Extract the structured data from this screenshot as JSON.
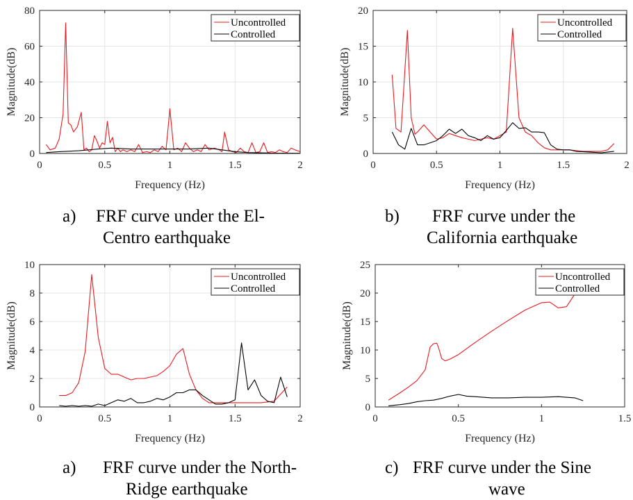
{
  "chart_data": [
    {
      "type": "line",
      "xlabel": "Frequency (Hz)",
      "ylabel": "Magnitude(dB)",
      "xlim": [
        0,
        2
      ],
      "ylim": [
        0,
        80
      ],
      "xticks": [
        "0",
        "0.5",
        "1",
        "1.5",
        "2"
      ],
      "yticks": [
        "0",
        "20",
        "40",
        "60",
        "80"
      ],
      "grid": true,
      "legend": "top-right",
      "series": [
        {
          "name": "Uncontrolled",
          "color": "#e8191e",
          "x": [
            0.05,
            0.08,
            0.12,
            0.15,
            0.18,
            0.2,
            0.22,
            0.24,
            0.26,
            0.29,
            0.32,
            0.34,
            0.36,
            0.38,
            0.4,
            0.42,
            0.44,
            0.46,
            0.48,
            0.5,
            0.52,
            0.54,
            0.56,
            0.58,
            0.6,
            0.62,
            0.64,
            0.67,
            0.7,
            0.73,
            0.76,
            0.79,
            0.82,
            0.85,
            0.88,
            0.91,
            0.94,
            0.97,
            1.0,
            1.03,
            1.06,
            1.09,
            1.12,
            1.15,
            1.18,
            1.21,
            1.24,
            1.27,
            1.3,
            1.34,
            1.38,
            1.4,
            1.42,
            1.45,
            1.48,
            1.51,
            1.54,
            1.57,
            1.6,
            1.63,
            1.66,
            1.69,
            1.72,
            1.75,
            1.78,
            1.81,
            1.84,
            1.87,
            1.9,
            1.93,
            1.96,
            2.0
          ],
          "y": [
            5,
            2,
            3,
            8,
            22,
            73,
            17,
            16,
            12,
            15,
            23,
            2,
            3,
            1,
            2,
            10,
            7,
            3,
            6,
            5,
            18,
            6,
            9,
            1,
            3,
            1,
            2,
            1,
            2,
            1,
            5,
            0.5,
            1,
            0.5,
            2,
            1,
            4,
            2,
            25,
            2,
            3,
            1,
            6,
            3,
            1,
            2,
            1,
            5,
            2,
            3,
            2,
            1,
            12,
            2,
            1,
            0.5,
            3,
            1,
            0.5,
            6,
            0.5,
            1,
            6,
            0.5,
            1,
            0.5,
            2,
            1,
            0.5,
            3,
            2,
            1
          ]
        },
        {
          "name": "Controlled",
          "color": "#000000",
          "x": [
            0.05,
            0.15,
            0.3,
            0.45,
            0.55,
            0.7,
            0.85,
            1.0,
            1.15,
            1.3,
            1.4,
            1.5,
            1.6,
            1.8,
            2.0
          ],
          "y": [
            0.5,
            1,
            1.5,
            2.5,
            3,
            2.5,
            2.5,
            2.5,
            2.5,
            3,
            2,
            1,
            0.5,
            0.2,
            0.1
          ]
        }
      ]
    },
    {
      "type": "line",
      "xlabel": "Frequency (Hz)",
      "ylabel": "Magnitude(dB)",
      "xlim": [
        0,
        2
      ],
      "ylim": [
        0,
        20
      ],
      "xticks": [
        "0",
        "0.5",
        "1",
        "1.5",
        "2"
      ],
      "yticks": [
        "0",
        "5",
        "10",
        "15",
        "20"
      ],
      "grid": true,
      "legend": "top-right",
      "series": [
        {
          "name": "Uncontrolled",
          "color": "#e8191e",
          "x": [
            0.15,
            0.18,
            0.22,
            0.27,
            0.3,
            0.33,
            0.35,
            0.4,
            0.45,
            0.5,
            0.55,
            0.6,
            0.65,
            0.7,
            0.75,
            0.8,
            0.85,
            0.9,
            0.95,
            1.0,
            1.05,
            1.1,
            1.15,
            1.2,
            1.25,
            1.3,
            1.35,
            1.4,
            1.45,
            1.5,
            1.55,
            1.6,
            1.65,
            1.7,
            1.75,
            1.8,
            1.85,
            1.9
          ],
          "y": [
            11,
            3.5,
            3,
            17.2,
            5,
            2.7,
            3,
            4,
            3,
            2,
            2.2,
            2.8,
            2.5,
            2.2,
            2,
            1.8,
            2,
            2.2,
            2,
            2.5,
            3,
            17.5,
            5,
            3,
            2.5,
            1.5,
            0.8,
            0.5,
            0.5,
            0.5,
            0.5,
            0.4,
            0.3,
            0.3,
            0.3,
            0.3,
            0.5,
            1.4
          ]
        },
        {
          "name": "Controlled",
          "color": "#000000",
          "x": [
            0.15,
            0.2,
            0.25,
            0.3,
            0.35,
            0.4,
            0.45,
            0.5,
            0.55,
            0.6,
            0.65,
            0.7,
            0.75,
            0.8,
            0.85,
            0.9,
            0.95,
            1.0,
            1.05,
            1.1,
            1.15,
            1.2,
            1.25,
            1.3,
            1.35,
            1.4,
            1.45,
            1.5,
            1.55,
            1.6,
            1.7,
            1.8,
            1.85,
            1.9
          ],
          "y": [
            3,
            1.2,
            0.6,
            3.5,
            1.2,
            1.2,
            1.5,
            1.8,
            2.5,
            3.4,
            2.8,
            3.4,
            2.5,
            2.2,
            1.8,
            2.5,
            2,
            2.2,
            3.2,
            4.3,
            3.5,
            3.6,
            3,
            3,
            2.9,
            1.2,
            0.6,
            0.5,
            0.5,
            0.3,
            0.2,
            0.1,
            0.2,
            0.3
          ]
        }
      ]
    },
    {
      "type": "line",
      "xlabel": "Frequency (Hz)",
      "ylabel": "Magnitude(dB)",
      "xlim": [
        0,
        2
      ],
      "ylim": [
        0,
        10
      ],
      "xticks": [
        "0",
        "0.5",
        "1",
        "1.5",
        "2"
      ],
      "yticks": [
        "0",
        "2",
        "4",
        "6",
        "8",
        "10"
      ],
      "grid": true,
      "legend": "top-right",
      "series": [
        {
          "name": "Uncontrolled",
          "color": "#e8191e",
          "x": [
            0.15,
            0.2,
            0.25,
            0.3,
            0.35,
            0.4,
            0.45,
            0.5,
            0.55,
            0.6,
            0.65,
            0.7,
            0.75,
            0.8,
            0.85,
            0.9,
            0.95,
            1.0,
            1.05,
            1.1,
            1.15,
            1.2,
            1.25,
            1.3,
            1.35,
            1.4,
            1.5,
            1.6,
            1.7,
            1.8,
            1.9
          ],
          "y": [
            0.8,
            0.8,
            1,
            1.7,
            3.9,
            9.3,
            4.9,
            2.7,
            2.3,
            2.3,
            2.1,
            1.9,
            2,
            2,
            2.1,
            2.2,
            2.5,
            2.9,
            3.7,
            4.1,
            2.3,
            1.2,
            0.6,
            0.3,
            0.3,
            0.3,
            0.3,
            0.3,
            0.3,
            0.4,
            1.4
          ]
        },
        {
          "name": "Controlled",
          "color": "#000000",
          "x": [
            0.15,
            0.2,
            0.25,
            0.3,
            0.35,
            0.4,
            0.45,
            0.5,
            0.55,
            0.6,
            0.65,
            0.7,
            0.75,
            0.8,
            0.85,
            0.9,
            0.95,
            1.0,
            1.05,
            1.1,
            1.15,
            1.2,
            1.25,
            1.3,
            1.35,
            1.4,
            1.45,
            1.5,
            1.55,
            1.6,
            1.65,
            1.7,
            1.75,
            1.8,
            1.85,
            1.9
          ],
          "y": [
            0.1,
            0.05,
            0.1,
            0.05,
            0.1,
            0.05,
            0.2,
            0.1,
            0.3,
            0.5,
            0.4,
            0.6,
            0.3,
            0.3,
            0.4,
            0.6,
            0.5,
            0.7,
            1,
            1,
            1.2,
            1.2,
            0.8,
            0.5,
            0.2,
            0.2,
            0.3,
            0.5,
            4.5,
            1.2,
            1.9,
            0.8,
            0.4,
            0.3,
            2.1,
            0.7
          ]
        }
      ]
    },
    {
      "type": "line",
      "xlabel": "Frequency (Hz)",
      "ylabel": "Magnitude(dB)",
      "xlim": [
        0,
        1.5
      ],
      "ylim": [
        0,
        25
      ],
      "xticks": [
        "0",
        "0.5",
        "1",
        "1.5"
      ],
      "yticks": [
        "0",
        "5",
        "10",
        "15",
        "20",
        "25"
      ],
      "grid": false,
      "legend": "top-right",
      "series": [
        {
          "name": "Uncontrolled",
          "color": "#e8191e",
          "x": [
            0.08,
            0.15,
            0.2,
            0.25,
            0.3,
            0.33,
            0.35,
            0.37,
            0.38,
            0.4,
            0.42,
            0.45,
            0.5,
            0.6,
            0.7,
            0.8,
            0.9,
            1.0,
            1.05,
            1.1,
            1.15,
            1.2
          ],
          "y": [
            1.2,
            2.5,
            3.5,
            4.6,
            6.5,
            10.5,
            11.1,
            11.2,
            10.5,
            8.5,
            8.1,
            8.4,
            9.2,
            11.3,
            13.3,
            15.2,
            17,
            18.3,
            18.4,
            17.4,
            17.6,
            19.8
          ]
        },
        {
          "name": "Controlled",
          "color": "#000000",
          "x": [
            0.08,
            0.15,
            0.2,
            0.25,
            0.3,
            0.35,
            0.4,
            0.45,
            0.5,
            0.55,
            0.6,
            0.7,
            0.8,
            0.9,
            1.0,
            1.1,
            1.15,
            1.2,
            1.25
          ],
          "y": [
            0.2,
            0.4,
            0.6,
            0.9,
            1.1,
            1.2,
            1.5,
            1.9,
            2.2,
            1.9,
            1.8,
            1.6,
            1.6,
            1.7,
            1.7,
            1.8,
            1.7,
            1.6,
            1.1
          ]
        }
      ]
    }
  ],
  "captions": [
    {
      "label": "a)",
      "line1": "FRF curve under the El-",
      "line2": "Centro earthquake"
    },
    {
      "label": "b)",
      "line1": "FRF curve under the",
      "line2": "California earthquake"
    },
    {
      "label": "a)",
      "line1": "FRF curve under the North-",
      "line2": "Ridge earthquake"
    },
    {
      "label": "c)",
      "line1": "FRF curve under the Sine",
      "line2": "wave"
    }
  ]
}
